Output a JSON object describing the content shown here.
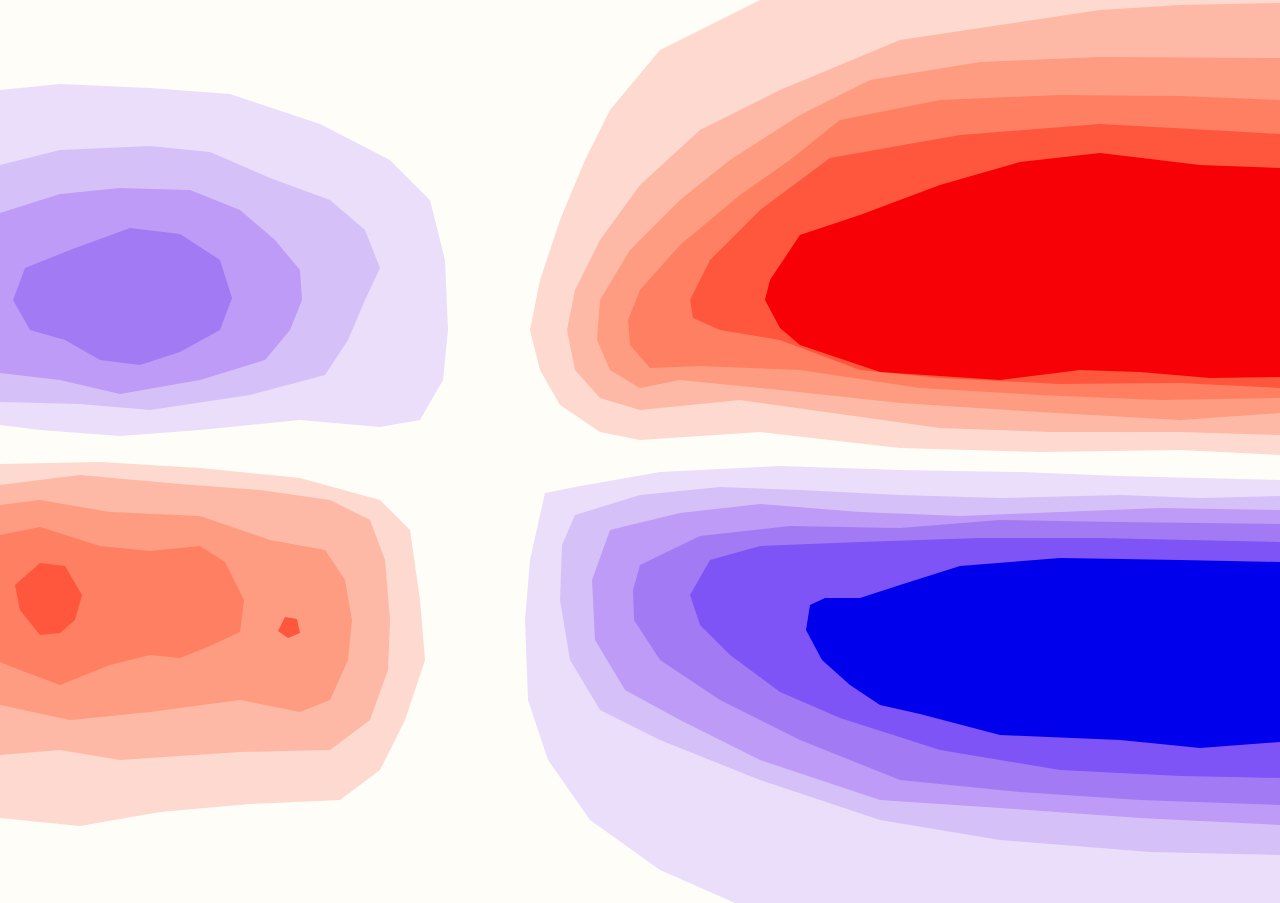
{
  "chart_data": {
    "type": "contour",
    "title": "",
    "xlabel": "",
    "ylabel": "",
    "grid": false,
    "legend": "none",
    "colorscale": {
      "neutral": "#fffdf7",
      "positive": [
        "#fdd9cf",
        "#fdb9a6",
        "#fd9c80",
        "#fe7f62",
        "#fe573e",
        "#f70006"
      ],
      "negative": [
        "#ebdefa",
        "#d6c0f8",
        "#be9bf6",
        "#a27bf4",
        "#7e54f6",
        "#0000ec"
      ]
    },
    "regions": [
      {
        "name": "",
        "sign": "negative",
        "peak_level": 4
      },
      {
        "name": "",
        "sign": "positive",
        "peak_level": 5
      },
      {
        "name": "",
        "sign": "positive",
        "peak_level": 6
      },
      {
        "name": "",
        "sign": "negative",
        "peak_level": 6
      }
    ]
  }
}
